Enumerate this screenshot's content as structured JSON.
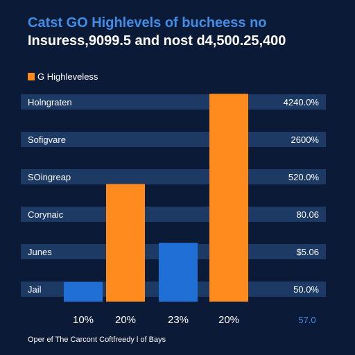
{
  "title": "Catst GO Highlevels of bucheess no",
  "subtitle": "Insuress,9099.5 and nost d4,500.25,400",
  "legend": {
    "label": "G Highleveless"
  },
  "footnote": "Oper ef The Carcont Coftfreedy l of Bays",
  "colors": {
    "background": "#0b1a36",
    "band": "#1d3a65",
    "orange": "#ff8a1e",
    "blue": "#1f6fd6",
    "blue_text": "#3f8ee8",
    "white": "#ffffff"
  },
  "chart_data": {
    "type": "bar",
    "title": "Catst GO Highlevels of bucheess no",
    "subtitle": "Insuress,9099.5 and nost d4,500.25,400",
    "row_labels": [
      "Holngraten",
      "Sofigvare",
      "SOingreap",
      "Corynaic",
      "Junes",
      "Jail"
    ],
    "right_labels": [
      "4240.0%",
      "2600%",
      "520.0%",
      "80.06",
      "$5.06",
      "50.0%"
    ],
    "categories": [
      "10%",
      "20%",
      "23%",
      "20%"
    ],
    "extra_x_label": "57.0",
    "values": [
      5,
      30,
      15,
      53
    ],
    "bar_colors": [
      "#1f6fd6",
      "#ff8a1e",
      "#1f6fd6",
      "#ff8a1e"
    ],
    "ylim": [
      0,
      55
    ],
    "legend_position": "top-left"
  }
}
